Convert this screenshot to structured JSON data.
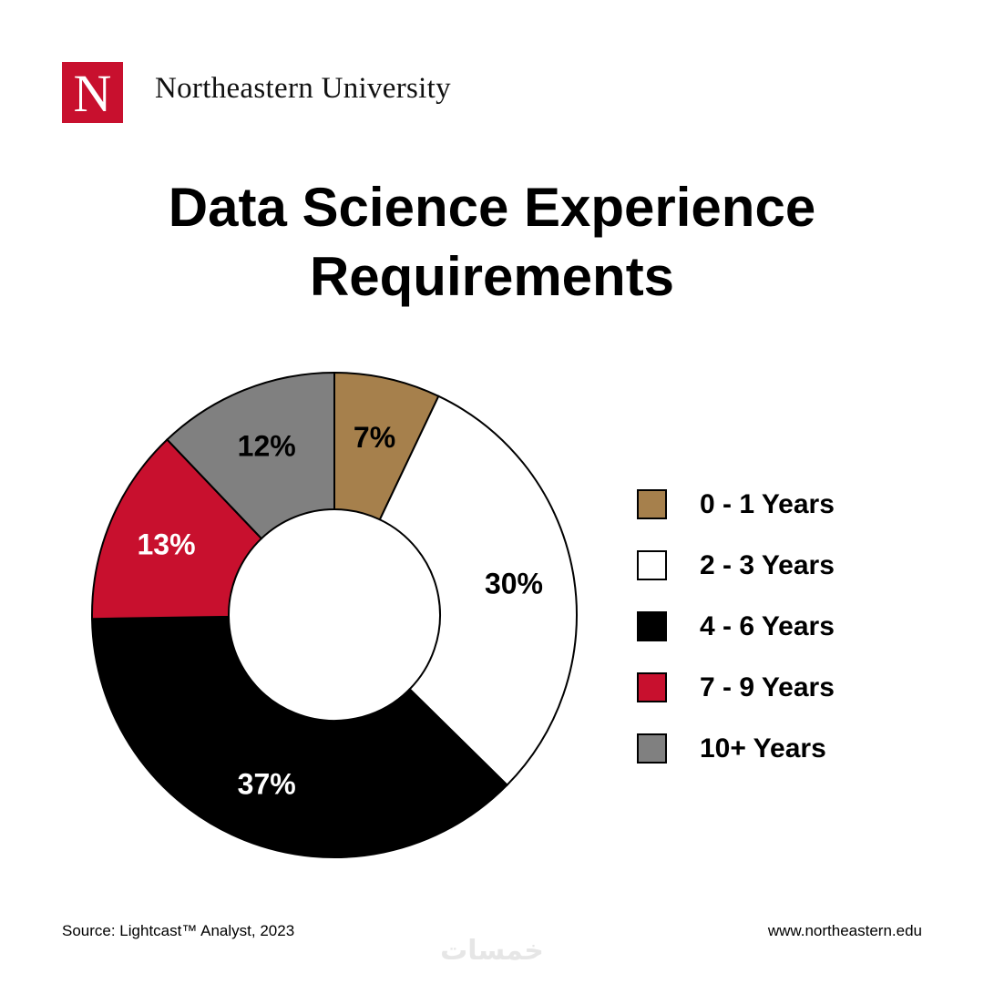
{
  "header": {
    "logo_letter": "N",
    "university_name": "Northeastern University"
  },
  "colors": {
    "brand_red": "#c8102e",
    "tan": "#a6804c",
    "white": "#ffffff",
    "black": "#000000",
    "red": "#c8102e",
    "gray": "#808080"
  },
  "chart_data": {
    "type": "pie",
    "style": "donut",
    "title": [
      "Data Science Experience",
      "Requirements"
    ],
    "categories": [
      "0 - 1 Years",
      "2 - 3 Years",
      "4 - 6 Years",
      "7 - 9 Years",
      "10+ Years"
    ],
    "values": [
      7,
      30,
      37,
      13,
      12
    ],
    "value_labels": [
      "7%",
      "30%",
      "37%",
      "13%",
      "12%"
    ],
    "colors": [
      "#a6804c",
      "#ffffff",
      "#000000",
      "#c8102e",
      "#808080"
    ],
    "label_colors": [
      "#000000",
      "#000000",
      "#ffffff",
      "#ffffff",
      "#000000"
    ],
    "unit": "%",
    "legend_position": "right"
  },
  "footer": {
    "source": "Source: Lightcast™ Analyst, 2023",
    "website": "www.northeastern.edu",
    "watermark": "خمسات"
  }
}
